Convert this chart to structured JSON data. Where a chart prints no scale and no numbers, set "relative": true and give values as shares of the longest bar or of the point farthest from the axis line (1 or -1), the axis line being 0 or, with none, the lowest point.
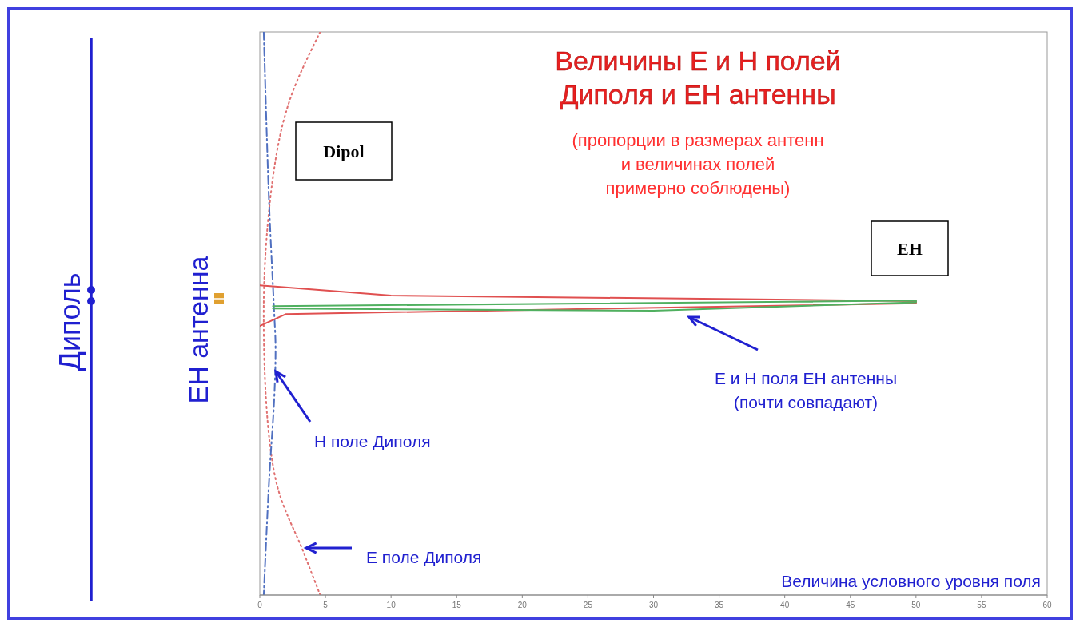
{
  "chart_data": {
    "type": "line",
    "title": "Величины Е и Н полей\nДиполя и ЕН антенны",
    "subtitle": "(пропорции в размерах антенн\nи величинах полей\nпримерно соблюдены)",
    "xlabel": "Величина условного уровня поля",
    "relative": true,
    "xlim": [
      0,
      60
    ],
    "xticks": [
      0,
      5,
      10,
      15,
      20,
      25,
      30,
      35,
      40,
      45,
      50,
      55,
      60
    ],
    "grid": false,
    "marker": "none",
    "series": [
      {
        "color": "#e07070",
        "line_style": "dotted",
        "x": [
          4.6,
          2.4,
          1.2,
          0.3,
          1.2,
          3.3,
          4.6
        ],
        "values": [
          1,
          0.887,
          0.773,
          0.518,
          0.206,
          0.078,
          0
        ]
      },
      {
        "color": "#5070c0",
        "line_style": "dashed",
        "x": [
          0.3,
          0.7,
          1.1,
          1.2,
          1.1,
          0.7,
          0.3
        ],
        "values": [
          1,
          0.7,
          0.5,
          0.44,
          0.35,
          0.2,
          0
        ]
      },
      {
        "color": "#e05050",
        "line_style": "solid",
        "x": [
          0,
          10,
          50,
          50,
          2,
          0
        ],
        "values": [
          0.55,
          0.532,
          0.522,
          0.518,
          0.499,
          0.478
        ]
      },
      {
        "color": "#50b060",
        "line_style": "solid",
        "x": [
          1,
          50,
          50,
          30,
          1
        ],
        "values": [
          0.513,
          0.523,
          0.52,
          0.505,
          0.509
        ]
      }
    ],
    "annotations": [
      "Н поле Диполя",
      "Е поле Диполя",
      "Е и Н поля ЕН антенны\n(почти совпадают)",
      "Dipol",
      "EH",
      "Диполь",
      "ЕН антенна"
    ]
  }
}
